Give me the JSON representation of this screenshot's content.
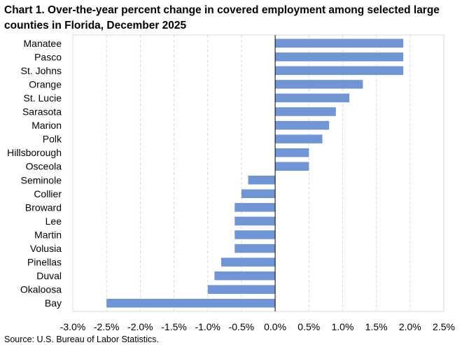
{
  "chart_data": {
    "type": "bar",
    "orientation": "horizontal",
    "title": "Chart 1. Over-the-year percent change in covered employment among selected large counties in Florida, December 2025",
    "categories": [
      "Manatee",
      "Pasco",
      "St. Johns",
      "Orange",
      "St. Lucie",
      "Sarasota",
      "Marion",
      "Polk",
      "Hillsborough",
      "Osceola",
      "Seminole",
      "Collier",
      "Broward",
      "Lee",
      "Martin",
      "Volusia",
      "Pinellas",
      "Duval",
      "Okaloosa",
      "Bay"
    ],
    "values": [
      1.9,
      1.9,
      1.9,
      1.3,
      1.1,
      0.9,
      0.8,
      0.7,
      0.5,
      0.5,
      -0.4,
      -0.5,
      -0.6,
      -0.6,
      -0.6,
      -0.6,
      -0.8,
      -0.9,
      -1.0,
      -2.5
    ],
    "xlim": [
      -3.0,
      2.5
    ],
    "ticks": [
      -3.0,
      -2.5,
      -2.0,
      -1.5,
      -1.0,
      -0.5,
      0.0,
      0.5,
      1.0,
      1.5,
      2.0,
      2.5
    ],
    "tick_labels": [
      "-3.0%",
      "-2.5%",
      "-2.0%",
      "-1.5%",
      "-1.0%",
      "-0.5%",
      "0.0%",
      "0.5%",
      "1.0%",
      "1.5%",
      "2.0%",
      "2.5%"
    ],
    "grid": "vertical dashed",
    "xlabel": "",
    "ylabel": "",
    "bar_color": "#6f95d6",
    "source": "Source: U.S. Bureau of Labor Statistics."
  }
}
